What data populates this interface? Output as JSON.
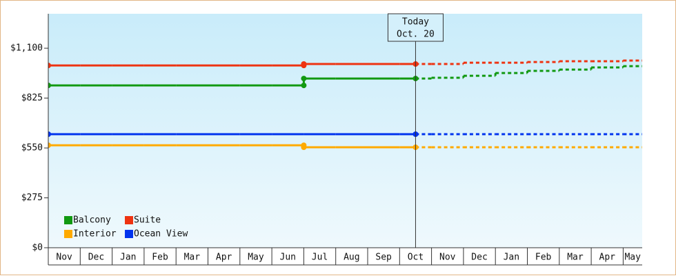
{
  "chart_data": {
    "type": "step",
    "categories": [
      "Nov",
      "Dec",
      "Jan",
      "Feb",
      "Mar",
      "Apr",
      "May",
      "Jun",
      "Jul",
      "Aug",
      "Sep",
      "Oct",
      "Nov",
      "Dec",
      "Jan",
      "Feb",
      "Mar",
      "Apr",
      "May"
    ],
    "ylim": [
      0,
      1290
    ],
    "yticks": [
      {
        "value": 0,
        "label": "$0"
      },
      {
        "value": 275,
        "label": "$275"
      },
      {
        "value": 550,
        "label": "$550"
      },
      {
        "value": 825,
        "label": "$825"
      },
      {
        "value": 1100,
        "label": "$1,100"
      }
    ],
    "annotation": {
      "lines": [
        "Today",
        "Oct. 20"
      ]
    },
    "series": [
      {
        "name": "Balcony",
        "color": "#119911",
        "values": [
          895,
          895,
          895,
          895,
          895,
          895,
          895,
          895,
          933,
          933,
          933,
          933,
          null,
          null,
          null,
          null,
          null,
          null,
          null
        ],
        "forecast": [
          null,
          null,
          null,
          null,
          null,
          null,
          null,
          null,
          null,
          null,
          null,
          null,
          937,
          948,
          963,
          975,
          982,
          994,
          1001
        ]
      },
      {
        "name": "Suite",
        "color": "#ee3311",
        "values": [
          1005,
          1005,
          1005,
          1005,
          1005,
          1005,
          1005,
          1005,
          1013,
          1013,
          1013,
          1013,
          null,
          null,
          null,
          null,
          null,
          null,
          null
        ],
        "forecast": [
          null,
          null,
          null,
          null,
          null,
          null,
          null,
          null,
          null,
          null,
          null,
          null,
          1013,
          1020,
          1020,
          1024,
          1028,
          1028,
          1032
        ]
      },
      {
        "name": "Interior",
        "color": "#ffaa00",
        "values": [
          565,
          565,
          565,
          565,
          565,
          565,
          565,
          565,
          554,
          554,
          554,
          554,
          null,
          null,
          null,
          null,
          null,
          null,
          null
        ],
        "forecast": [
          null,
          null,
          null,
          null,
          null,
          null,
          null,
          null,
          null,
          null,
          null,
          null,
          554,
          554,
          554,
          554,
          554,
          554,
          554
        ]
      },
      {
        "name": "Ocean View",
        "color": "#0033ee",
        "values": [
          626,
          626,
          626,
          626,
          626,
          626,
          626,
          626,
          626,
          626,
          626,
          626,
          null,
          null,
          null,
          null,
          null,
          null,
          null
        ],
        "forecast": [
          null,
          null,
          null,
          null,
          null,
          null,
          null,
          null,
          null,
          null,
          null,
          null,
          626,
          626,
          626,
          626,
          626,
          626,
          626
        ]
      }
    ]
  }
}
